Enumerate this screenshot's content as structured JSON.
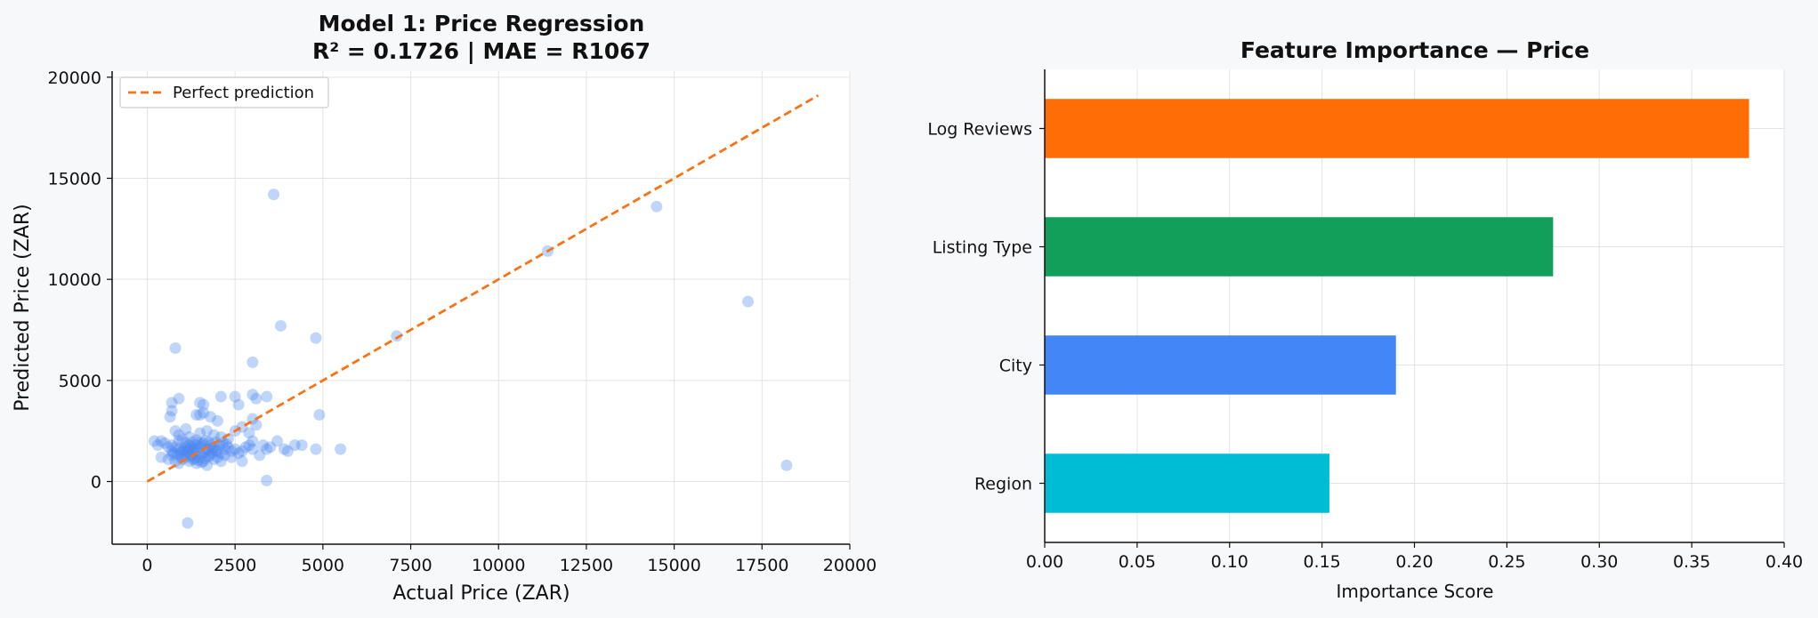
{
  "chart_data": [
    {
      "type": "scatter",
      "title": "Model 1: Price Regression",
      "subtitle": "R² = 0.1726 | MAE = R1067",
      "xlabel": "Actual Price (ZAR)",
      "ylabel": "Predicted Price (ZAR)",
      "xlim": [
        -1000,
        20000
      ],
      "ylim": [
        -3100,
        20300
      ],
      "x_ticks": [
        0,
        2500,
        5000,
        7500,
        10000,
        12500,
        15000,
        17500,
        20000
      ],
      "y_ticks": [
        0,
        5000,
        10000,
        15000,
        20000
      ],
      "grid": true,
      "legend": {
        "position": "top-left",
        "entries": [
          "Perfect prediction"
        ]
      },
      "point_color": "#4a86f0",
      "line_color": "#f97316",
      "reference_line": {
        "name": "Perfect prediction",
        "from": [
          0,
          0
        ],
        "to": [
          19100,
          19100
        ],
        "style": "dashed"
      },
      "points": [
        [
          3600,
          14200
        ],
        [
          14500,
          13600
        ],
        [
          11400,
          11400
        ],
        [
          17100,
          8900
        ],
        [
          3800,
          7700
        ],
        [
          4800,
          7100
        ],
        [
          7100,
          7200
        ],
        [
          800,
          6600
        ],
        [
          3000,
          5900
        ],
        [
          18200,
          800
        ],
        [
          1150,
          -2050
        ],
        [
          3400,
          50
        ],
        [
          5500,
          1600
        ],
        [
          4900,
          3300
        ],
        [
          4800,
          1600
        ],
        [
          3400,
          4200
        ],
        [
          3100,
          4100
        ],
        [
          3000,
          4300
        ],
        [
          2500,
          4200
        ],
        [
          2100,
          4200
        ],
        [
          1500,
          3900
        ],
        [
          1600,
          3800
        ],
        [
          900,
          4100
        ],
        [
          700,
          3900
        ],
        [
          700,
          3500
        ],
        [
          650,
          3200
        ],
        [
          1400,
          3300
        ],
        [
          1500,
          3300
        ],
        [
          1600,
          3400
        ],
        [
          1800,
          3200
        ],
        [
          2000,
          3000
        ],
        [
          2600,
          3800
        ],
        [
          3000,
          3100
        ],
        [
          3100,
          2800
        ],
        [
          2700,
          2700
        ],
        [
          800,
          2500
        ],
        [
          900,
          2300
        ],
        [
          1100,
          2600
        ],
        [
          1200,
          2200
        ],
        [
          1500,
          2400
        ],
        [
          1700,
          2500
        ],
        [
          1900,
          2300
        ],
        [
          2100,
          2200
        ],
        [
          2300,
          2100
        ],
        [
          2500,
          2500
        ],
        [
          2900,
          2400
        ],
        [
          3000,
          2000
        ],
        [
          3300,
          1800
        ],
        [
          3400,
          1600
        ],
        [
          3500,
          1700
        ],
        [
          3700,
          2000
        ],
        [
          4000,
          1500
        ],
        [
          4200,
          1800
        ],
        [
          4400,
          1800
        ],
        [
          3900,
          1600
        ],
        [
          200,
          2000
        ],
        [
          300,
          1800
        ],
        [
          400,
          2000
        ],
        [
          500,
          1900
        ],
        [
          600,
          1700
        ],
        [
          700,
          1800
        ],
        [
          800,
          1700
        ],
        [
          900,
          1600
        ],
        [
          1000,
          1500
        ],
        [
          1100,
          1700
        ],
        [
          1200,
          1600
        ],
        [
          1300,
          1500
        ],
        [
          1400,
          1800
        ],
        [
          1500,
          1700
        ],
        [
          1600,
          1900
        ],
        [
          1700,
          1600
        ],
        [
          1800,
          1800
        ],
        [
          1900,
          1700
        ],
        [
          2000,
          1500
        ],
        [
          2100,
          1400
        ],
        [
          2200,
          1600
        ],
        [
          2300,
          1700
        ],
        [
          2400,
          1500
        ],
        [
          2500,
          1600
        ],
        [
          2600,
          1400
        ],
        [
          2700,
          1500
        ],
        [
          2800,
          1700
        ],
        [
          2900,
          1800
        ],
        [
          3000,
          1600
        ],
        [
          3200,
          1300
        ],
        [
          400,
          1200
        ],
        [
          600,
          1100
        ],
        [
          700,
          1300
        ],
        [
          800,
          1000
        ],
        [
          900,
          900
        ],
        [
          1000,
          1100
        ],
        [
          1100,
          1200
        ],
        [
          1200,
          1000
        ],
        [
          1300,
          1100
        ],
        [
          1400,
          900
        ],
        [
          1500,
          1200
        ],
        [
          1600,
          1000
        ],
        [
          1700,
          800
        ],
        [
          1800,
          1300
        ],
        [
          1900,
          1100
        ],
        [
          2000,
          1200
        ],
        [
          2100,
          1000
        ],
        [
          2200,
          1300
        ],
        [
          2400,
          1200
        ],
        [
          2700,
          1000
        ],
        [
          950,
          1250
        ],
        [
          1050,
          1350
        ],
        [
          1150,
          1450
        ],
        [
          1250,
          1300
        ],
        [
          1350,
          1400
        ],
        [
          1450,
          1500
        ],
        [
          1550,
          1350
        ],
        [
          1650,
          1450
        ],
        [
          1750,
          1550
        ],
        [
          1850,
          1400
        ],
        [
          1950,
          1500
        ],
        [
          1250,
          1700
        ],
        [
          1350,
          1650
        ],
        [
          1450,
          1900
        ],
        [
          1550,
          1850
        ],
        [
          1650,
          2000
        ],
        [
          1750,
          1950
        ],
        [
          900,
          2000
        ],
        [
          1000,
          2100
        ],
        [
          1100,
          1900
        ],
        [
          1200,
          1800
        ],
        [
          1300,
          1950
        ],
        [
          1400,
          2050
        ],
        [
          2050,
          1800
        ],
        [
          2150,
          1900
        ],
        [
          2250,
          1850
        ],
        [
          700,
          1500
        ],
        [
          750,
          1400
        ],
        [
          850,
          1350
        ],
        [
          950,
          1450
        ],
        [
          1050,
          1550
        ],
        [
          1150,
          1650
        ],
        [
          1250,
          1250
        ],
        [
          1350,
          1150
        ],
        [
          1450,
          1050
        ],
        [
          1550,
          950
        ],
        [
          1650,
          1150
        ],
        [
          1750,
          1250
        ],
        [
          1850,
          1650
        ],
        [
          1950,
          1950
        ]
      ]
    },
    {
      "type": "bar",
      "orientation": "horizontal",
      "title": "Feature Importance — Price",
      "xlabel": "Importance Score",
      "ylabel": "",
      "xlim": [
        0,
        0.4
      ],
      "x_ticks": [
        "0.00",
        "0.05",
        "0.10",
        "0.15",
        "0.20",
        "0.25",
        "0.30",
        "0.35",
        "0.40"
      ],
      "grid": true,
      "categories": [
        "Log Reviews",
        "Listing Type",
        "City",
        "Region"
      ],
      "values": [
        0.381,
        0.275,
        0.19,
        0.154
      ],
      "colors": [
        "#ff6d05",
        "#119f5a",
        "#4287f5",
        "#00bcd4"
      ]
    }
  ]
}
